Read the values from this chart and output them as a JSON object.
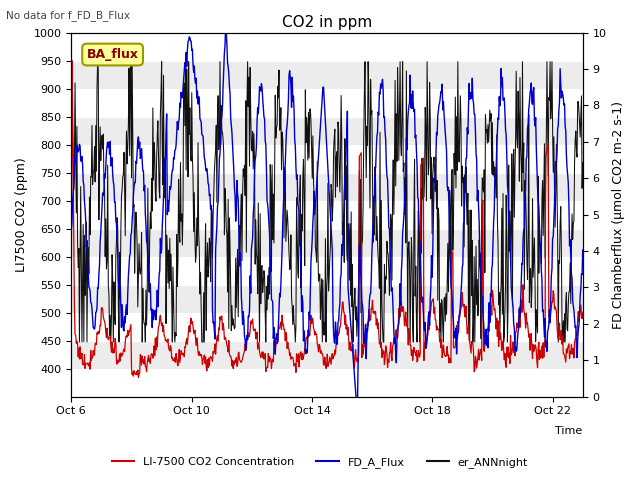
{
  "title": "CO2 in ppm",
  "top_left_text": "No data for f_FD_B_Flux",
  "ylabel_left": "LI7500 CO2 (ppm)",
  "ylabel_right": "FD Chamberflux (μmol CO2 m-2 s-1)",
  "xlabel": "Time",
  "ylim_left": [
    350,
    1000
  ],
  "ylim_right": [
    0.0,
    10.0
  ],
  "yticks_left": [
    400,
    450,
    500,
    550,
    600,
    650,
    700,
    750,
    800,
    850,
    900,
    950,
    1000
  ],
  "yticks_right": [
    0.0,
    1.0,
    2.0,
    3.0,
    4.0,
    5.0,
    6.0,
    7.0,
    8.0,
    9.0,
    10.0
  ],
  "xtick_labels": [
    "Oct 6",
    "Oct 10",
    "Oct 14",
    "Oct 18",
    "Oct 22"
  ],
  "xtick_positions": [
    0,
    4,
    8,
    12,
    16
  ],
  "n_days": 17,
  "legend_labels": [
    "LI-7500 CO2 Concentration",
    "FD_A_Flux",
    "er_ANNnight"
  ],
  "legend_colors": [
    "#cc0000",
    "#0000cc",
    "#111111"
  ],
  "ba_flux_label": "BA_flux",
  "ba_flux_bg": "#ffff99",
  "ba_flux_edge": "#999900",
  "background_color": "#ffffff",
  "grid_color": "#d8d8d8",
  "color_red": "#cc0000",
  "color_blue": "#0000cc",
  "color_black": "#111111",
  "title_fontsize": 11,
  "label_fontsize": 9,
  "tick_fontsize": 8
}
